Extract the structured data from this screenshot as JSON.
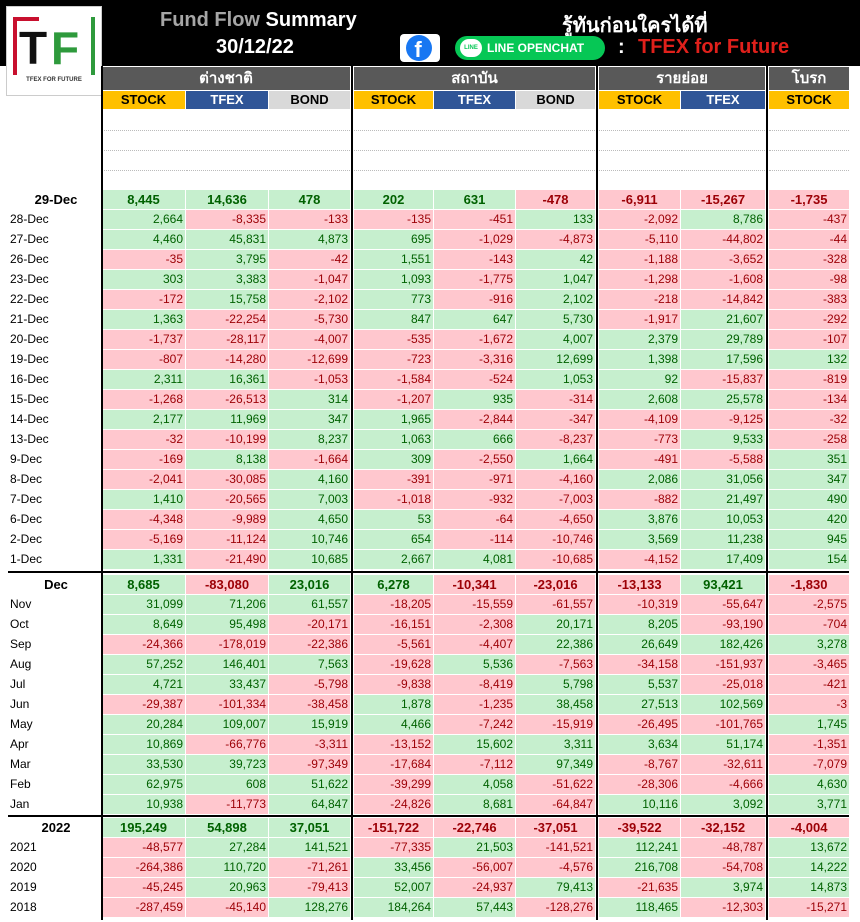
{
  "header": {
    "title_pre": "Fund Flow",
    "title_main": "Summary",
    "date": "30/12/22",
    "thai_slogan": "รู้ทันก่อนใครได้ที่",
    "line_label": "LINE OPENCHAT",
    "colon": ":",
    "brand": "TFEX for Future",
    "logo_text": "TFEX FOR FUTURE",
    "facebook_icon": "f",
    "line_icon": "LINE"
  },
  "groups": [
    "ต่างชาติ",
    "สถาบัน",
    "รายย่อย",
    "โบรก"
  ],
  "columns": [
    "STOCK",
    "TFEX",
    "BOND",
    "STOCK",
    "TFEX",
    "BOND",
    "STOCK",
    "TFEX",
    "STOCK"
  ],
  "daily_summary": {
    "label": "29-Dec",
    "values": [
      "8,445",
      "14,636",
      "478",
      "202",
      "631",
      "-478",
      "-6,911",
      "-15,267",
      "-1,735"
    ]
  },
  "daily": [
    {
      "label": "28-Dec",
      "values": [
        "2,664",
        "-8,335",
        "-133",
        "-135",
        "-451",
        "133",
        "-2,092",
        "8,786",
        "-437"
      ]
    },
    {
      "label": "27-Dec",
      "values": [
        "4,460",
        "45,831",
        "4,873",
        "695",
        "-1,029",
        "-4,873",
        "-5,110",
        "-44,802",
        "-44"
      ]
    },
    {
      "label": "26-Dec",
      "values": [
        "-35",
        "3,795",
        "-42",
        "1,551",
        "-143",
        "42",
        "-1,188",
        "-3,652",
        "-328"
      ]
    },
    {
      "label": "23-Dec",
      "values": [
        "303",
        "3,383",
        "-1,047",
        "1,093",
        "-1,775",
        "1,047",
        "-1,298",
        "-1,608",
        "-98"
      ]
    },
    {
      "label": "22-Dec",
      "values": [
        "-172",
        "15,758",
        "-2,102",
        "773",
        "-916",
        "2,102",
        "-218",
        "-14,842",
        "-383"
      ]
    },
    {
      "label": "21-Dec",
      "values": [
        "1,363",
        "-22,254",
        "-5,730",
        "847",
        "647",
        "5,730",
        "-1,917",
        "21,607",
        "-292"
      ]
    },
    {
      "label": "20-Dec",
      "values": [
        "-1,737",
        "-28,117",
        "-4,007",
        "-535",
        "-1,672",
        "4,007",
        "2,379",
        "29,789",
        "-107"
      ]
    },
    {
      "label": "19-Dec",
      "values": [
        "-807",
        "-14,280",
        "-12,699",
        "-723",
        "-3,316",
        "12,699",
        "1,398",
        "17,596",
        "132"
      ]
    },
    {
      "label": "16-Dec",
      "values": [
        "2,311",
        "16,361",
        "-1,053",
        "-1,584",
        "-524",
        "1,053",
        "92",
        "-15,837",
        "-819"
      ]
    },
    {
      "label": "15-Dec",
      "values": [
        "-1,268",
        "-26,513",
        "314",
        "-1,207",
        "935",
        "-314",
        "2,608",
        "25,578",
        "-134"
      ]
    },
    {
      "label": "14-Dec",
      "values": [
        "2,177",
        "11,969",
        "347",
        "1,965",
        "-2,844",
        "-347",
        "-4,109",
        "-9,125",
        "-32"
      ]
    },
    {
      "label": "13-Dec",
      "values": [
        "-32",
        "-10,199",
        "8,237",
        "1,063",
        "666",
        "-8,237",
        "-773",
        "9,533",
        "-258"
      ]
    },
    {
      "label": "9-Dec",
      "values": [
        "-169",
        "8,138",
        "-1,664",
        "309",
        "-2,550",
        "1,664",
        "-491",
        "-5,588",
        "351"
      ]
    },
    {
      "label": "8-Dec",
      "values": [
        "-2,041",
        "-30,085",
        "4,160",
        "-391",
        "-971",
        "-4,160",
        "2,086",
        "31,056",
        "347"
      ]
    },
    {
      "label": "7-Dec",
      "values": [
        "1,410",
        "-20,565",
        "7,003",
        "-1,018",
        "-932",
        "-7,003",
        "-882",
        "21,497",
        "490"
      ]
    },
    {
      "label": "6-Dec",
      "values": [
        "-4,348",
        "-9,989",
        "4,650",
        "53",
        "-64",
        "-4,650",
        "3,876",
        "10,053",
        "420"
      ]
    },
    {
      "label": "2-Dec",
      "values": [
        "-5,169",
        "-11,124",
        "10,746",
        "654",
        "-114",
        "-10,746",
        "3,569",
        "11,238",
        "945"
      ]
    },
    {
      "label": "1-Dec",
      "values": [
        "1,331",
        "-21,490",
        "10,685",
        "2,667",
        "4,081",
        "-10,685",
        "-4,152",
        "17,409",
        "154"
      ]
    }
  ],
  "monthly_summary": {
    "label": "Dec",
    "values": [
      "8,685",
      "-83,080",
      "23,016",
      "6,278",
      "-10,341",
      "-23,016",
      "-13,133",
      "93,421",
      "-1,830"
    ]
  },
  "monthly": [
    {
      "label": "Nov",
      "values": [
        "31,099",
        "71,206",
        "61,557",
        "-18,205",
        "-15,559",
        "-61,557",
        "-10,319",
        "-55,647",
        "-2,575"
      ]
    },
    {
      "label": "Oct",
      "values": [
        "8,649",
        "95,498",
        "-20,171",
        "-16,151",
        "-2,308",
        "20,171",
        "8,205",
        "-93,190",
        "-704"
      ]
    },
    {
      "label": "Sep",
      "values": [
        "-24,366",
        "-178,019",
        "-22,386",
        "-5,561",
        "-4,407",
        "22,386",
        "26,649",
        "182,426",
        "3,278"
      ]
    },
    {
      "label": "Aug",
      "values": [
        "57,252",
        "146,401",
        "7,563",
        "-19,628",
        "5,536",
        "-7,563",
        "-34,158",
        "-151,937",
        "-3,465"
      ]
    },
    {
      "label": "Jul",
      "values": [
        "4,721",
        "33,437",
        "-5,798",
        "-9,838",
        "-8,419",
        "5,798",
        "5,537",
        "-25,018",
        "-421"
      ]
    },
    {
      "label": "Jun",
      "values": [
        "-29,387",
        "-101,334",
        "-38,458",
        "1,878",
        "-1,235",
        "38,458",
        "27,513",
        "102,569",
        "-3"
      ]
    },
    {
      "label": "May",
      "values": [
        "20,284",
        "109,007",
        "15,919",
        "4,466",
        "-7,242",
        "-15,919",
        "-26,495",
        "-101,765",
        "1,745"
      ]
    },
    {
      "label": "Apr",
      "values": [
        "10,869",
        "-66,776",
        "-3,311",
        "-13,152",
        "15,602",
        "3,311",
        "3,634",
        "51,174",
        "-1,351"
      ]
    },
    {
      "label": "Mar",
      "values": [
        "33,530",
        "39,723",
        "-97,349",
        "-17,684",
        "-7,112",
        "97,349",
        "-8,767",
        "-32,611",
        "-7,079"
      ]
    },
    {
      "label": "Feb",
      "values": [
        "62,975",
        "608",
        "51,622",
        "-39,299",
        "4,058",
        "-51,622",
        "-28,306",
        "-4,666",
        "4,630"
      ]
    },
    {
      "label": "Jan",
      "values": [
        "10,938",
        "-11,773",
        "64,847",
        "-24,826",
        "8,681",
        "-64,847",
        "10,116",
        "3,092",
        "3,771"
      ]
    }
  ],
  "yearly_summary": {
    "label": "2022",
    "values": [
      "195,249",
      "54,898",
      "37,051",
      "-151,722",
      "-22,746",
      "-37,051",
      "-39,522",
      "-32,152",
      "-4,004"
    ]
  },
  "yearly": [
    {
      "label": "2021",
      "values": [
        "-48,577",
        "27,284",
        "141,521",
        "-77,335",
        "21,503",
        "-141,521",
        "112,241",
        "-48,787",
        "13,672"
      ]
    },
    {
      "label": "2020",
      "values": [
        "-264,386",
        "110,720",
        "-71,261",
        "33,456",
        "-56,007",
        "-4,576",
        "216,708",
        "-54,708",
        "14,222"
      ]
    },
    {
      "label": "2019",
      "values": [
        "-45,245",
        "20,963",
        "-79,413",
        "52,007",
        "-24,937",
        "79,413",
        "-21,635",
        "3,974",
        "14,873"
      ]
    },
    {
      "label": "2018",
      "values": [
        "-287,459",
        "-45,140",
        "128,276",
        "184,264",
        "57,443",
        "-128,276",
        "118,465",
        "-12,303",
        "-15,271"
      ]
    }
  ],
  "colors": {
    "header_bg": "#000000",
    "group_bg": "#595959",
    "stock": "#ffc000",
    "tfex": "#2f5597",
    "bond": "#d9d9d9",
    "pos_bg": "#c6efce",
    "neg_bg": "#ffc7ce",
    "brand_red": "#e0201b"
  }
}
